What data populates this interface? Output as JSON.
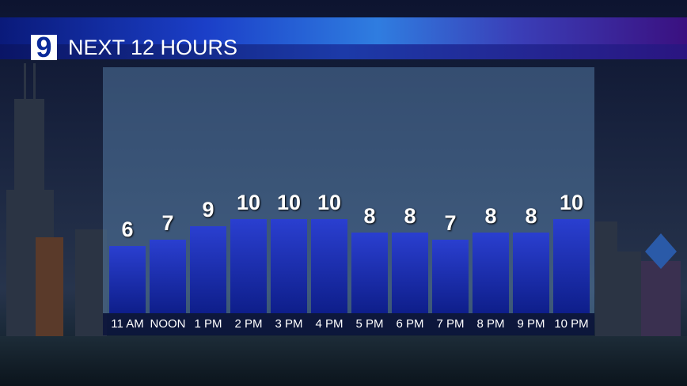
{
  "header": {
    "logo": "9",
    "title": "NEXT 12 HOURS"
  },
  "chart_data": {
    "type": "bar",
    "title": "NEXT 12 HOURS",
    "categories": [
      "11 AM",
      "NOON",
      "1 PM",
      "2 PM",
      "3 PM",
      "4 PM",
      "5 PM",
      "6 PM",
      "7 PM",
      "8 PM",
      "9 PM",
      "10 PM"
    ],
    "values": [
      6,
      7,
      9,
      10,
      10,
      10,
      8,
      8,
      7,
      8,
      8,
      10
    ],
    "bar_color": "#1e30b8",
    "grid": false
  }
}
